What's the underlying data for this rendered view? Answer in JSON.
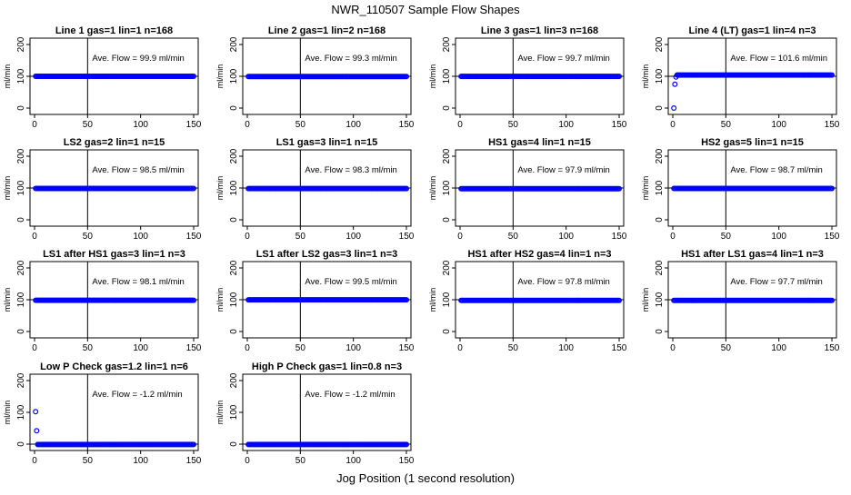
{
  "figure": {
    "title": "NWR_110507  Sample Flow Shapes",
    "xlabel": "Jog Position (1 second resolution)",
    "point_color": "#0000ff",
    "ref_line_color": "#000000"
  },
  "chart_data": [
    {
      "type": "scatter",
      "title": "Line 1 gas=1 lin=1 n=168",
      "ylabel": "ml/min",
      "xlim": [
        0,
        150
      ],
      "ylim": [
        -20,
        220
      ],
      "x_ticks": [
        0,
        50,
        100,
        150
      ],
      "y_ticks": [
        0,
        100,
        200
      ],
      "annotation": "Ave. Flow = 99.9  ml/min",
      "ref_x": 50,
      "ref_y": 100,
      "series": [
        {
          "x_start": 1,
          "x_end": 150,
          "level": 99.9,
          "outliers": []
        }
      ]
    },
    {
      "type": "scatter",
      "title": "Line 2 gas=1 lin=2 n=168",
      "ylabel": "ml/min",
      "xlim": [
        0,
        150
      ],
      "ylim": [
        -20,
        220
      ],
      "x_ticks": [
        0,
        50,
        100,
        150
      ],
      "y_ticks": [
        0,
        100,
        200
      ],
      "annotation": "Ave. Flow = 99.3  ml/min",
      "ref_x": 50,
      "ref_y": 100,
      "series": [
        {
          "x_start": 1,
          "x_end": 150,
          "level": 99.3,
          "outliers": []
        }
      ]
    },
    {
      "type": "scatter",
      "title": "Line 3 gas=1 lin=3 n=168",
      "ylabel": "ml/min",
      "xlim": [
        0,
        150
      ],
      "ylim": [
        -20,
        220
      ],
      "x_ticks": [
        0,
        50,
        100,
        150
      ],
      "y_ticks": [
        0,
        100,
        200
      ],
      "annotation": "Ave. Flow = 99.7  ml/min",
      "ref_x": 50,
      "ref_y": 100,
      "series": [
        {
          "x_start": 1,
          "x_end": 150,
          "level": 99.7,
          "outliers": []
        }
      ]
    },
    {
      "type": "scatter",
      "title": "Line 4 (LT) gas=1 lin=4 n=3",
      "ylabel": "ml/min",
      "xlim": [
        0,
        150
      ],
      "ylim": [
        -20,
        220
      ],
      "x_ticks": [
        0,
        50,
        100,
        150
      ],
      "y_ticks": [
        0,
        100,
        200
      ],
      "annotation": "Ave. Flow = 101.6  ml/min",
      "ref_x": 50,
      "ref_y": 100,
      "series": [
        {
          "x_start": 4,
          "x_end": 150,
          "level": 104,
          "outliers": [
            {
              "x": 1,
              "y": 0
            },
            {
              "x": 2,
              "y": 75
            },
            {
              "x": 3,
              "y": 98
            }
          ]
        }
      ]
    },
    {
      "type": "scatter",
      "title": "LS2 gas=2 lin=1 n=15",
      "ylabel": "ml/min",
      "xlim": [
        0,
        150
      ],
      "ylim": [
        -20,
        220
      ],
      "x_ticks": [
        0,
        50,
        100,
        150
      ],
      "y_ticks": [
        0,
        100,
        200
      ],
      "annotation": "Ave. Flow = 98.5  ml/min",
      "ref_x": 50,
      "ref_y": 100,
      "series": [
        {
          "x_start": 1,
          "x_end": 150,
          "level": 98.5,
          "outliers": []
        }
      ]
    },
    {
      "type": "scatter",
      "title": "LS1 gas=3 lin=1 n=15",
      "ylabel": "ml/min",
      "xlim": [
        0,
        150
      ],
      "ylim": [
        -20,
        220
      ],
      "x_ticks": [
        0,
        50,
        100,
        150
      ],
      "y_ticks": [
        0,
        100,
        200
      ],
      "annotation": "Ave. Flow = 98.3  ml/min",
      "ref_x": 50,
      "ref_y": 100,
      "series": [
        {
          "x_start": 1,
          "x_end": 150,
          "level": 98.3,
          "outliers": []
        }
      ]
    },
    {
      "type": "scatter",
      "title": "HS1 gas=4 lin=1 n=15",
      "ylabel": "ml/min",
      "xlim": [
        0,
        150
      ],
      "ylim": [
        -20,
        220
      ],
      "x_ticks": [
        0,
        50,
        100,
        150
      ],
      "y_ticks": [
        0,
        100,
        200
      ],
      "annotation": "Ave. Flow = 97.9  ml/min",
      "ref_x": 50,
      "ref_y": 100,
      "series": [
        {
          "x_start": 1,
          "x_end": 150,
          "level": 97.9,
          "outliers": []
        }
      ]
    },
    {
      "type": "scatter",
      "title": "HS2 gas=5 lin=1 n=15",
      "ylabel": "ml/min",
      "xlim": [
        0,
        150
      ],
      "ylim": [
        -20,
        220
      ],
      "x_ticks": [
        0,
        50,
        100,
        150
      ],
      "y_ticks": [
        0,
        100,
        200
      ],
      "annotation": "Ave. Flow = 98.7  ml/min",
      "ref_x": 50,
      "ref_y": 100,
      "series": [
        {
          "x_start": 1,
          "x_end": 150,
          "level": 98.7,
          "outliers": []
        }
      ]
    },
    {
      "type": "scatter",
      "title": "LS1 after HS1 gas=3 lin=1 n=3",
      "ylabel": "ml/min",
      "xlim": [
        0,
        150
      ],
      "ylim": [
        -20,
        220
      ],
      "x_ticks": [
        0,
        50,
        100,
        150
      ],
      "y_ticks": [
        0,
        100,
        200
      ],
      "annotation": "Ave. Flow = 98.1  ml/min",
      "ref_x": 50,
      "ref_y": 100,
      "series": [
        {
          "x_start": 1,
          "x_end": 150,
          "level": 98.1,
          "outliers": []
        }
      ]
    },
    {
      "type": "scatter",
      "title": "LS1 after LS2 gas=3 lin=1 n=3",
      "ylabel": "ml/min",
      "xlim": [
        0,
        150
      ],
      "ylim": [
        -20,
        220
      ],
      "x_ticks": [
        0,
        50,
        100,
        150
      ],
      "y_ticks": [
        0,
        100,
        200
      ],
      "annotation": "Ave. Flow = 99.5  ml/min",
      "ref_x": 50,
      "ref_y": 100,
      "series": [
        {
          "x_start": 1,
          "x_end": 150,
          "level": 99.5,
          "outliers": []
        }
      ]
    },
    {
      "type": "scatter",
      "title": "HS1 after HS2 gas=4 lin=1 n=3",
      "ylabel": "ml/min",
      "xlim": [
        0,
        150
      ],
      "ylim": [
        -20,
        220
      ],
      "x_ticks": [
        0,
        50,
        100,
        150
      ],
      "y_ticks": [
        0,
        100,
        200
      ],
      "annotation": "Ave. Flow = 97.8  ml/min",
      "ref_x": 50,
      "ref_y": 100,
      "series": [
        {
          "x_start": 1,
          "x_end": 150,
          "level": 97.8,
          "outliers": []
        }
      ]
    },
    {
      "type": "scatter",
      "title": "HS1 after LS1 gas=4 lin=1 n=3",
      "ylabel": "ml/min",
      "xlim": [
        0,
        150
      ],
      "ylim": [
        -20,
        220
      ],
      "x_ticks": [
        0,
        50,
        100,
        150
      ],
      "y_ticks": [
        0,
        100,
        200
      ],
      "annotation": "Ave. Flow = 97.7  ml/min",
      "ref_x": 50,
      "ref_y": 100,
      "series": [
        {
          "x_start": 1,
          "x_end": 150,
          "level": 97.7,
          "outliers": []
        }
      ]
    },
    {
      "type": "scatter",
      "title": "Low P Check gas=1.2 lin=1 n=6",
      "ylabel": "ml/min",
      "xlim": [
        0,
        150
      ],
      "ylim": [
        -20,
        220
      ],
      "x_ticks": [
        0,
        50,
        100,
        150
      ],
      "y_ticks": [
        0,
        100,
        200
      ],
      "annotation": "Ave. Flow = -1.2  ml/min",
      "ref_x": 50,
      "ref_y": 0,
      "series": [
        {
          "x_start": 3,
          "x_end": 150,
          "level": -1.2,
          "outliers": [
            {
              "x": 1,
              "y": 102
            },
            {
              "x": 2,
              "y": 42
            }
          ]
        }
      ]
    },
    {
      "type": "scatter",
      "title": "High P Check gas=1 lin=0.8 n=3",
      "ylabel": "ml/min",
      "xlim": [
        0,
        150
      ],
      "ylim": [
        -20,
        220
      ],
      "x_ticks": [
        0,
        50,
        100,
        150
      ],
      "y_ticks": [
        0,
        100,
        200
      ],
      "annotation": "Ave. Flow = -1.2  ml/min",
      "ref_x": 50,
      "ref_y": 0,
      "series": [
        {
          "x_start": 1,
          "x_end": 150,
          "level": -1.2,
          "outliers": []
        }
      ]
    }
  ]
}
